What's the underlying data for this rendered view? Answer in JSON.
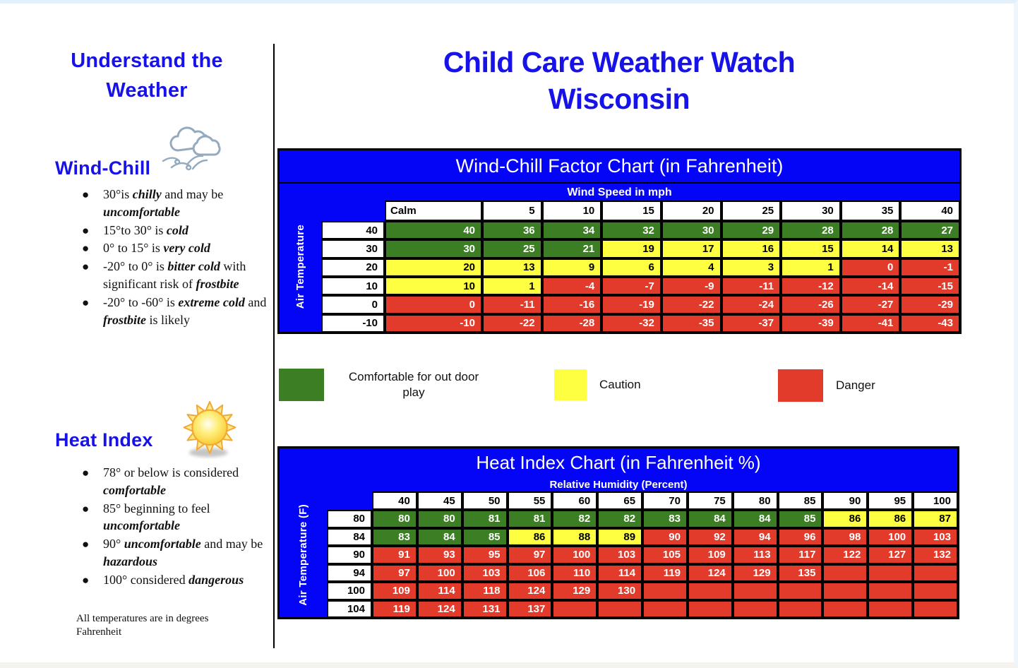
{
  "page": {
    "sidebar_title": "Understand the Weather",
    "main_title_line1": "Child Care Weather Watch",
    "main_title_line2": "Wisconsin"
  },
  "sidebar": {
    "wind_chill": {
      "heading": "Wind-Chill",
      "icon": "wind-cloud-icon",
      "bullets": [
        {
          "runs": [
            {
              "t": "30°is ",
              "b": 0
            },
            {
              "t": "chilly",
              "b": 1
            },
            {
              "t": " and may be ",
              "b": 0
            },
            {
              "t": "uncomfortable",
              "b": 1
            }
          ]
        },
        {
          "runs": [
            {
              "t": "15°to 30° is ",
              "b": 0
            },
            {
              "t": "cold",
              "b": 1
            }
          ]
        },
        {
          "runs": [
            {
              "t": "0° to 15° is ",
              "b": 0
            },
            {
              "t": "very cold",
              "b": 1
            }
          ]
        },
        {
          "runs": [
            {
              "t": "-20° to 0° is ",
              "b": 0
            },
            {
              "t": "bitter cold",
              "b": 1
            },
            {
              "t": " with significant  risk of ",
              "b": 0
            },
            {
              "t": "frostbite",
              "b": 1
            }
          ]
        },
        {
          "runs": [
            {
              "t": "-20° to -60° is ",
              "b": 0
            },
            {
              "t": "extreme cold",
              "b": 1
            },
            {
              "t": " and ",
              "b": 0
            },
            {
              "t": "frostbite",
              "b": 1
            },
            {
              "t": " is likely",
              "b": 0
            }
          ]
        }
      ]
    },
    "heat_index": {
      "heading": "Heat Index",
      "icon": "sun-icon",
      "bullets": [
        {
          "runs": [
            {
              "t": "78° or below is considered ",
              "b": 0
            },
            {
              "t": "comfortable",
              "b": 1
            }
          ]
        },
        {
          "runs": [
            {
              "t": "85° beginning to feel ",
              "b": 0
            },
            {
              "t": "uncomfortable",
              "b": 1
            }
          ]
        },
        {
          "runs": [
            {
              "t": "90° ",
              "b": 0
            },
            {
              "t": "uncomfortable",
              "b": 1
            },
            {
              "t": " and may be ",
              "b": 0
            },
            {
              "t": "hazardous",
              "b": 1
            }
          ]
        },
        {
          "runs": [
            {
              "t": "100° considered ",
              "b": 0
            },
            {
              "t": "dangerous",
              "b": 1
            }
          ]
        }
      ],
      "footnote": "All temperatures are in degrees Fahrenheit"
    }
  },
  "wind_chill_chart": {
    "type": "table",
    "title": "Wind-Chill Factor Chart (in Fahrenheit)",
    "subtitle": "Wind Speed in mph",
    "side_label": "Air Temperature",
    "first_col_left": true,
    "columns": [
      "Calm",
      "5",
      "10",
      "15",
      "20",
      "25",
      "30",
      "35",
      "40"
    ],
    "rows": [
      {
        "label": "40",
        "cells": [
          {
            "v": "40",
            "c": "g"
          },
          {
            "v": "36",
            "c": "g"
          },
          {
            "v": "34",
            "c": "g"
          },
          {
            "v": "32",
            "c": "g"
          },
          {
            "v": "30",
            "c": "g"
          },
          {
            "v": "29",
            "c": "g"
          },
          {
            "v": "28",
            "c": "g"
          },
          {
            "v": "28",
            "c": "g"
          },
          {
            "v": "27",
            "c": "g"
          }
        ]
      },
      {
        "label": "30",
        "cells": [
          {
            "v": "30",
            "c": "g"
          },
          {
            "v": "25",
            "c": "g"
          },
          {
            "v": "21",
            "c": "g"
          },
          {
            "v": "19",
            "c": "y"
          },
          {
            "v": "17",
            "c": "y"
          },
          {
            "v": "16",
            "c": "y"
          },
          {
            "v": "15",
            "c": "y"
          },
          {
            "v": "14",
            "c": "y"
          },
          {
            "v": "13",
            "c": "y"
          }
        ]
      },
      {
        "label": "20",
        "cells": [
          {
            "v": "20",
            "c": "y"
          },
          {
            "v": "13",
            "c": "y"
          },
          {
            "v": "9",
            "c": "y"
          },
          {
            "v": "6",
            "c": "y"
          },
          {
            "v": "4",
            "c": "y"
          },
          {
            "v": "3",
            "c": "y"
          },
          {
            "v": "1",
            "c": "y"
          },
          {
            "v": "0",
            "c": "r"
          },
          {
            "v": "-1",
            "c": "r"
          }
        ]
      },
      {
        "label": "10",
        "cells": [
          {
            "v": "10",
            "c": "y"
          },
          {
            "v": "1",
            "c": "y"
          },
          {
            "v": "-4",
            "c": "r"
          },
          {
            "v": "-7",
            "c": "r"
          },
          {
            "v": "-9",
            "c": "r"
          },
          {
            "v": "-11",
            "c": "r"
          },
          {
            "v": "-12",
            "c": "r"
          },
          {
            "v": "-14",
            "c": "r"
          },
          {
            "v": "-15",
            "c": "r"
          }
        ]
      },
      {
        "label": "0",
        "cells": [
          {
            "v": "0",
            "c": "r"
          },
          {
            "v": "-11",
            "c": "r"
          },
          {
            "v": "-16",
            "c": "r"
          },
          {
            "v": "-19",
            "c": "r"
          },
          {
            "v": "-22",
            "c": "r"
          },
          {
            "v": "-24",
            "c": "r"
          },
          {
            "v": "-26",
            "c": "r"
          },
          {
            "v": "-27",
            "c": "r"
          },
          {
            "v": "-29",
            "c": "r"
          }
        ]
      },
      {
        "label": "-10",
        "cells": [
          {
            "v": "-10",
            "c": "r"
          },
          {
            "v": "-22",
            "c": "r"
          },
          {
            "v": "-28",
            "c": "r"
          },
          {
            "v": "-32",
            "c": "r"
          },
          {
            "v": "-35",
            "c": "r"
          },
          {
            "v": "-37",
            "c": "r"
          },
          {
            "v": "-39",
            "c": "r"
          },
          {
            "v": "-41",
            "c": "r"
          },
          {
            "v": "-43",
            "c": "r"
          }
        ]
      }
    ]
  },
  "legend": {
    "items": [
      {
        "label": "Comfortable for out door play",
        "color": "#3b7e23",
        "meaning": "comfortable"
      },
      {
        "label": "Caution",
        "color": "#ffff42",
        "meaning": "caution"
      },
      {
        "label": "Danger",
        "color": "#e23b2c",
        "meaning": "danger"
      }
    ]
  },
  "heat_index_chart": {
    "type": "table",
    "title": "Heat Index Chart (in Fahrenheit %)",
    "subtitle": "Relative Humidity (Percent)",
    "side_label": "Air Temperature (F)",
    "first_col_left": false,
    "columns": [
      "40",
      "45",
      "50",
      "55",
      "60",
      "65",
      "70",
      "75",
      "80",
      "85",
      "90",
      "95",
      "100"
    ],
    "rows": [
      {
        "label": "80",
        "cells": [
          {
            "v": "80",
            "c": "g"
          },
          {
            "v": "80",
            "c": "g"
          },
          {
            "v": "81",
            "c": "g"
          },
          {
            "v": "81",
            "c": "g"
          },
          {
            "v": "82",
            "c": "g"
          },
          {
            "v": "82",
            "c": "g"
          },
          {
            "v": "83",
            "c": "g"
          },
          {
            "v": "84",
            "c": "g"
          },
          {
            "v": "84",
            "c": "g"
          },
          {
            "v": "85",
            "c": "g"
          },
          {
            "v": "86",
            "c": "y"
          },
          {
            "v": "86",
            "c": "y"
          },
          {
            "v": "87",
            "c": "y"
          }
        ]
      },
      {
        "label": "84",
        "cells": [
          {
            "v": "83",
            "c": "g"
          },
          {
            "v": "84",
            "c": "g"
          },
          {
            "v": "85",
            "c": "g"
          },
          {
            "v": "86",
            "c": "y"
          },
          {
            "v": "88",
            "c": "y"
          },
          {
            "v": "89",
            "c": "y"
          },
          {
            "v": "90",
            "c": "r"
          },
          {
            "v": "92",
            "c": "r"
          },
          {
            "v": "94",
            "c": "r"
          },
          {
            "v": "96",
            "c": "r"
          },
          {
            "v": "98",
            "c": "r"
          },
          {
            "v": "100",
            "c": "r"
          },
          {
            "v": "103",
            "c": "r"
          }
        ]
      },
      {
        "label": "90",
        "cells": [
          {
            "v": "91",
            "c": "r"
          },
          {
            "v": "93",
            "c": "r"
          },
          {
            "v": "95",
            "c": "r"
          },
          {
            "v": "97",
            "c": "r"
          },
          {
            "v": "100",
            "c": "r"
          },
          {
            "v": "103",
            "c": "r"
          },
          {
            "v": "105",
            "c": "r"
          },
          {
            "v": "109",
            "c": "r"
          },
          {
            "v": "113",
            "c": "r"
          },
          {
            "v": "117",
            "c": "r"
          },
          {
            "v": "122",
            "c": "r"
          },
          {
            "v": "127",
            "c": "r"
          },
          {
            "v": "132",
            "c": "r"
          }
        ]
      },
      {
        "label": "94",
        "cells": [
          {
            "v": "97",
            "c": "r"
          },
          {
            "v": "100",
            "c": "r"
          },
          {
            "v": "103",
            "c": "r"
          },
          {
            "v": "106",
            "c": "r"
          },
          {
            "v": "110",
            "c": "r"
          },
          {
            "v": "114",
            "c": "r"
          },
          {
            "v": "119",
            "c": "r"
          },
          {
            "v": "124",
            "c": "r"
          },
          {
            "v": "129",
            "c": "r"
          },
          {
            "v": "135",
            "c": "r"
          },
          {
            "v": "",
            "c": "r"
          },
          {
            "v": "",
            "c": "r"
          },
          {
            "v": "",
            "c": "r"
          }
        ]
      },
      {
        "label": "100",
        "cells": [
          {
            "v": "109",
            "c": "r"
          },
          {
            "v": "114",
            "c": "r"
          },
          {
            "v": "118",
            "c": "r"
          },
          {
            "v": "124",
            "c": "r"
          },
          {
            "v": "129",
            "c": "r"
          },
          {
            "v": "130",
            "c": "r"
          },
          {
            "v": "",
            "c": "r"
          },
          {
            "v": "",
            "c": "r"
          },
          {
            "v": "",
            "c": "r"
          },
          {
            "v": "",
            "c": "r"
          },
          {
            "v": "",
            "c": "r"
          },
          {
            "v": "",
            "c": "r"
          },
          {
            "v": "",
            "c": "r"
          }
        ]
      },
      {
        "label": "104",
        "cells": [
          {
            "v": "119",
            "c": "r"
          },
          {
            "v": "124",
            "c": "r"
          },
          {
            "v": "131",
            "c": "r"
          },
          {
            "v": "137",
            "c": "r"
          },
          {
            "v": "",
            "c": "r"
          },
          {
            "v": "",
            "c": "r"
          },
          {
            "v": "",
            "c": "r"
          },
          {
            "v": "",
            "c": "r"
          },
          {
            "v": "",
            "c": "r"
          },
          {
            "v": "",
            "c": "r"
          },
          {
            "v": "",
            "c": "r"
          },
          {
            "v": "",
            "c": "r"
          },
          {
            "v": "",
            "c": "r"
          }
        ]
      }
    ]
  },
  "colors": {
    "table_header_blue": "#0404f6",
    "heading_blue": "#1713e8",
    "comfortable_green": "#3b7e23",
    "caution_yellow": "#ffff42",
    "danger_red": "#e23b2c"
  }
}
